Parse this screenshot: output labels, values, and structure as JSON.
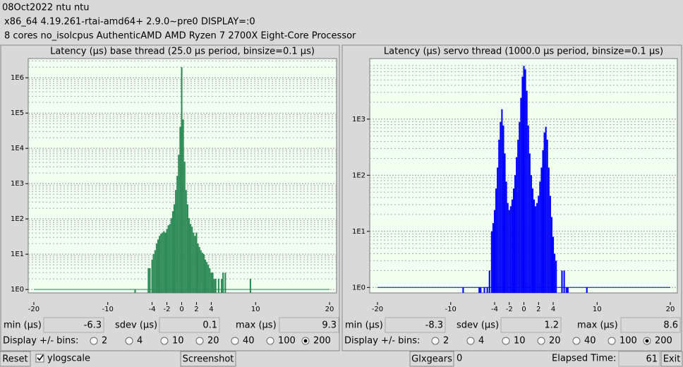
{
  "header": {
    "lines": [
      "08Oct2022 ntu ntu",
      "x86_64  4.19.261-rtai-amd64+  2.9.0~pre0  DISPLAY=:0",
      "8 cores  no_isolcpus   AuthenticAMD  AMD Ryzen 7 2700X Eight-Core Processor"
    ]
  },
  "chart_data": [
    {
      "type": "bar",
      "title": "Latency (µs) base thread (25.0 µs period, binsize=0.1 µs)",
      "x": [
        -6.3,
        -4.5,
        -4.3,
        -4.0,
        -3.8,
        -3.6,
        -3.4,
        -3.2,
        -3.0,
        -2.8,
        -2.6,
        -2.4,
        -2.2,
        -2.0,
        -1.8,
        -1.6,
        -1.4,
        -1.2,
        -1.0,
        -0.8,
        -0.6,
        -0.4,
        -0.2,
        0,
        0.2,
        0.4,
        0.6,
        0.8,
        1.0,
        1.2,
        1.4,
        1.6,
        1.8,
        2.0,
        2.2,
        2.4,
        2.6,
        2.8,
        3.0,
        3.2,
        3.4,
        3.6,
        3.8,
        4.0,
        4.2,
        4.4,
        4.6,
        5.0,
        5.4,
        5.6,
        5.9,
        9.3
      ],
      "values": [
        1,
        4,
        4,
        7,
        10,
        13,
        20,
        26,
        33,
        38,
        41,
        45,
        41,
        52,
        66,
        72,
        105,
        165,
        260,
        660,
        1660,
        6600,
        41000,
        2000000,
        66000,
        4200,
        660,
        260,
        105,
        72,
        60,
        41,
        33,
        41,
        20,
        16,
        13,
        11,
        10,
        7,
        6,
        5,
        4,
        3,
        3,
        2,
        2,
        2,
        2,
        3,
        3,
        2
      ],
      "color": "#2e8b57",
      "xlim": [
        -20.76,
        20.95
      ],
      "xticks": [
        -20,
        -10,
        -4,
        -2,
        0,
        2,
        4,
        10,
        20
      ],
      "ylim": [
        0.8,
        3500000
      ],
      "y_scale": "log",
      "yticks": [
        {
          "value": 1,
          "label": "1E0"
        },
        {
          "value": 10,
          "label": "1E1"
        },
        {
          "value": 100,
          "label": "1E2"
        },
        {
          "value": 1000,
          "label": "1E3"
        },
        {
          "value": 10000,
          "label": "1E4"
        },
        {
          "value": 100000,
          "label": "1E5"
        },
        {
          "value": 1000000,
          "label": "1E6"
        }
      ],
      "grid": true
    },
    {
      "type": "bar",
      "title": "Latency (µs) servo thread (1000.0 µs period, binsize=0.1 µs)",
      "x": [
        -8.3,
        -6.1,
        -5.9,
        -5.4,
        -5.0,
        -4.7,
        -4.4,
        -4.2,
        -4.0,
        -3.8,
        -3.6,
        -3.4,
        -3.2,
        -3.0,
        -2.8,
        -2.6,
        -2.4,
        -2.2,
        -2.0,
        -1.8,
        -1.6,
        -1.4,
        -1.2,
        -1.0,
        -0.8,
        -0.6,
        -0.4,
        -0.2,
        0,
        0.2,
        0.4,
        0.6,
        0.8,
        1.0,
        1.2,
        1.4,
        1.6,
        1.8,
        2.0,
        2.2,
        2.4,
        2.6,
        2.8,
        3.0,
        3.2,
        3.4,
        3.6,
        3.8,
        4.0,
        4.2,
        4.4,
        5.2,
        5.5,
        5.8,
        6.0,
        8.6
      ],
      "values": [
        1,
        1,
        1,
        1,
        1,
        2,
        10,
        14,
        24,
        58,
        137,
        430,
        890,
        1500,
        770,
        245,
        77,
        32,
        24,
        28,
        37,
        58,
        100,
        210,
        430,
        890,
        2400,
        5700,
        8900,
        7700,
        3200,
        770,
        245,
        100,
        58,
        37,
        28,
        32,
        43,
        77,
        137,
        280,
        580,
        730,
        430,
        137,
        43,
        18,
        8,
        4,
        3,
        2,
        2,
        1,
        1,
        1
      ],
      "color": "#0000ff",
      "xlim": [
        -21.06,
        20.96
      ],
      "xticks": [
        -20,
        -10,
        -4,
        -2,
        0,
        2,
        4,
        10,
        20
      ],
      "ylim": [
        0.8,
        12000
      ],
      "y_scale": "log",
      "yticks": [
        {
          "value": 1,
          "label": "1E0"
        },
        {
          "value": 10,
          "label": "1E1"
        },
        {
          "value": 100,
          "label": "1E2"
        },
        {
          "value": 1000,
          "label": "1E3"
        }
      ],
      "grid": true
    }
  ],
  "stats": [
    {
      "min_label": "min (µs)",
      "min": -6.3,
      "sdev_label": "sdev (µs)",
      "sdev": 0.1,
      "max_label": "max (µs)",
      "max": 9.3,
      "bins_label": "Display +/- bins:",
      "bins": [
        2,
        4,
        10,
        20,
        40,
        100,
        200
      ],
      "selected_bin": 200
    },
    {
      "min_label": "min (µs)",
      "min": -8.3,
      "sdev_label": "sdev (µs)",
      "sdev": 1.2,
      "max_label": "max (µs)",
      "max": 8.6,
      "bins_label": "Display +/- bins:",
      "bins": [
        2,
        4,
        10,
        20,
        40,
        100,
        200
      ],
      "selected_bin": 200
    }
  ],
  "controls": {
    "reset": "Reset",
    "ylogscale": "ylogscale",
    "ylogscale_checked": true,
    "screenshot": "Screenshot",
    "glxgears": "Glxgears",
    "glxgears_count": 0,
    "elapsed_label": "Elapsed Time:",
    "elapsed": 61,
    "exit": "Exit"
  }
}
